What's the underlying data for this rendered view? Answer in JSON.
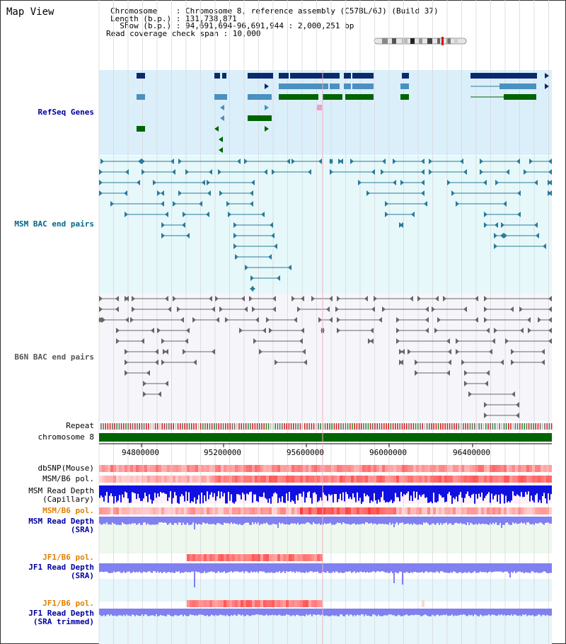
{
  "title": "Map View",
  "info": {
    "chromosome": "Chromosome    : Chromosome 8, reference assembly (C57BL/6J) (Build 37)",
    "length": "Length (b.p.) : 131,738,871",
    "show": "  Show (b.p.) : 94,691,694-96,691,944 : 2,000,251 bp",
    "span": "Read coverage check span : 10,000"
  },
  "tracks": {
    "refseq": "RefSeq Genes",
    "msm_bac": "MSM BAC end pairs",
    "b6n_bac": "B6N BAC end pairs",
    "repeat": "Repeat",
    "chromosome": "chromosome 8",
    "dbsnp": "dbSNP(Mouse)",
    "msm_b6_pol": "MSM/B6 pol.",
    "msm_depth_cap_1": "MSM Read Depth",
    "msm_depth_cap_2": "(Capillary)",
    "msm_b6_pol2": "MSM/B6 pol.",
    "msm_depth_sra_1": "MSM Read Depth",
    "msm_depth_sra_2": "(SRA)",
    "jf1_b6_pol": "JF1/B6 pol.",
    "jf1_depth_sra_1": "JF1 Read Depth",
    "jf1_depth_sra_2": "(SRA)",
    "jf1_b6_pol2": "JF1/B6 pol.",
    "jf1_depth_tr_1": "JF1 Read Depth",
    "jf1_depth_tr_2": "(SRA trimmed)"
  },
  "axis": {
    "ticks": [
      "94800000",
      "95200000",
      "95600000",
      "96000000",
      "96400000"
    ]
  },
  "colors": {
    "navy": "#0a2a6e",
    "gene_teal": "#4a90c0",
    "gene_green": "#006400",
    "bac_teal": "#2a7a99",
    "bac_grey": "#666666",
    "depth_blue": "#1010e0",
    "depth_lilac": "#8080f0",
    "label_blue": "#0000a0",
    "label_teal": "#006688",
    "label_grey": "#555555",
    "label_orange": "#e08000"
  }
}
